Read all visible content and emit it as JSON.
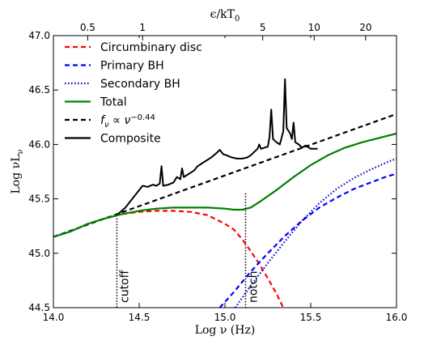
{
  "chart_data": {
    "type": "line",
    "xlabel": "Log ν (Hz)",
    "ylabel": "Log νL",
    "ylabel_sub": "ν",
    "top_xlabel": "ϵ/kT",
    "top_xlabel_sub": "0",
    "xlim": [
      14.0,
      16.0
    ],
    "ylim": [
      44.5,
      47.0
    ],
    "xticks": [
      14.0,
      14.5,
      15.0,
      15.5,
      16.0
    ],
    "xtick_labels": [
      "14.0",
      "14.5",
      "15.0",
      "15.5",
      "16.0"
    ],
    "yticks": [
      44.5,
      45.0,
      45.5,
      46.0,
      46.5,
      47.0
    ],
    "ytick_labels": [
      "44.5",
      "45.0",
      "45.5",
      "46.0",
      "46.5",
      "47.0"
    ],
    "top_ticks": [
      {
        "label": "0.5",
        "x": 14.2
      },
      {
        "label": "1",
        "x": 14.52
      },
      {
        "label": "5",
        "x": 15.22
      },
      {
        "label": "10",
        "x": 15.52
      },
      {
        "label": "20",
        "x": 15.82
      }
    ],
    "legend_position": "top-left",
    "grid": false,
    "series": [
      {
        "name": "Circumbinary disc",
        "color": "#ff0000",
        "style": "dashed",
        "points": [
          [
            14.0,
            45.15
          ],
          [
            14.1,
            45.2
          ],
          [
            14.2,
            45.27
          ],
          [
            14.3,
            45.32
          ],
          [
            14.4,
            45.36
          ],
          [
            14.5,
            45.38
          ],
          [
            14.6,
            45.39
          ],
          [
            14.7,
            45.39
          ],
          [
            14.8,
            45.38
          ],
          [
            14.9,
            45.35
          ],
          [
            15.0,
            45.27
          ],
          [
            15.05,
            45.22
          ],
          [
            15.1,
            45.13
          ],
          [
            15.15,
            45.02
          ],
          [
            15.2,
            44.9
          ],
          [
            15.25,
            44.77
          ],
          [
            15.3,
            44.63
          ],
          [
            15.34,
            44.5
          ]
        ]
      },
      {
        "name": "Primary BH",
        "color": "#0000ff",
        "style": "dashed",
        "points": [
          [
            14.97,
            44.5
          ],
          [
            15.05,
            44.64
          ],
          [
            15.15,
            44.83
          ],
          [
            15.25,
            45.0
          ],
          [
            15.35,
            45.16
          ],
          [
            15.45,
            45.3
          ],
          [
            15.55,
            45.42
          ],
          [
            15.65,
            45.51
          ],
          [
            15.75,
            45.59
          ],
          [
            15.85,
            45.65
          ],
          [
            15.95,
            45.71
          ],
          [
            16.0,
            45.73
          ]
        ]
      },
      {
        "name": "Secondary BH",
        "color": "#0000cc",
        "style": "dotted",
        "points": [
          [
            15.06,
            44.5
          ],
          [
            15.15,
            44.7
          ],
          [
            15.25,
            44.91
          ],
          [
            15.35,
            45.11
          ],
          [
            15.45,
            45.3
          ],
          [
            15.55,
            45.46
          ],
          [
            15.65,
            45.59
          ],
          [
            15.75,
            45.69
          ],
          [
            15.85,
            45.77
          ],
          [
            15.95,
            45.84
          ],
          [
            16.0,
            45.87
          ]
        ]
      },
      {
        "name": "Total",
        "color": "#007f00",
        "style": "solid",
        "points": [
          [
            14.0,
            45.15
          ],
          [
            14.1,
            45.2
          ],
          [
            14.2,
            45.27
          ],
          [
            14.3,
            45.32
          ],
          [
            14.4,
            45.36
          ],
          [
            14.5,
            45.39
          ],
          [
            14.6,
            45.41
          ],
          [
            14.7,
            45.42
          ],
          [
            14.8,
            45.42
          ],
          [
            14.9,
            45.42
          ],
          [
            15.0,
            45.41
          ],
          [
            15.05,
            45.4
          ],
          [
            15.1,
            45.4
          ],
          [
            15.15,
            45.42
          ],
          [
            15.2,
            45.47
          ],
          [
            15.3,
            45.58
          ],
          [
            15.4,
            45.7
          ],
          [
            15.5,
            45.81
          ],
          [
            15.6,
            45.9
          ],
          [
            15.7,
            45.97
          ],
          [
            15.8,
            46.02
          ],
          [
            15.9,
            46.06
          ],
          [
            16.0,
            46.1
          ]
        ]
      },
      {
        "name": "f_ν ∝ ν^−0.44",
        "color": "#000000",
        "style": "dashed",
        "points": [
          [
            14.0,
            45.15
          ],
          [
            16.0,
            46.28
          ]
        ]
      },
      {
        "name": "Composite",
        "color": "#000000",
        "style": "solid",
        "points": [
          [
            14.33,
            45.33
          ],
          [
            14.37,
            45.35
          ],
          [
            14.42,
            45.42
          ],
          [
            14.47,
            45.52
          ],
          [
            14.5,
            45.58
          ],
          [
            14.52,
            45.62
          ],
          [
            14.55,
            45.61
          ],
          [
            14.58,
            45.63
          ],
          [
            14.6,
            45.62
          ],
          [
            14.62,
            45.64
          ],
          [
            14.63,
            45.8
          ],
          [
            14.64,
            45.62
          ],
          [
            14.67,
            45.63
          ],
          [
            14.7,
            45.65
          ],
          [
            14.72,
            45.7
          ],
          [
            14.74,
            45.68
          ],
          [
            14.75,
            45.78
          ],
          [
            14.76,
            45.7
          ],
          [
            14.78,
            45.72
          ],
          [
            14.8,
            45.74
          ],
          [
            14.82,
            45.76
          ],
          [
            14.84,
            45.8
          ],
          [
            14.86,
            45.82
          ],
          [
            14.88,
            45.84
          ],
          [
            14.9,
            45.86
          ],
          [
            14.92,
            45.88
          ],
          [
            14.95,
            45.92
          ],
          [
            14.97,
            45.95
          ],
          [
            14.99,
            45.91
          ],
          [
            15.01,
            45.9
          ],
          [
            15.04,
            45.88
          ],
          [
            15.07,
            45.87
          ],
          [
            15.1,
            45.87
          ],
          [
            15.13,
            45.88
          ],
          [
            15.15,
            45.9
          ],
          [
            15.17,
            45.93
          ],
          [
            15.19,
            45.96
          ],
          [
            15.2,
            46.0
          ],
          [
            15.21,
            45.96
          ],
          [
            15.23,
            45.97
          ],
          [
            15.25,
            45.98
          ],
          [
            15.26,
            46.07
          ],
          [
            15.27,
            46.32
          ],
          [
            15.28,
            46.05
          ],
          [
            15.3,
            46.02
          ],
          [
            15.32,
            46.0
          ],
          [
            15.34,
            46.12
          ],
          [
            15.35,
            46.6
          ],
          [
            15.36,
            46.15
          ],
          [
            15.38,
            46.1
          ],
          [
            15.39,
            46.05
          ],
          [
            15.4,
            46.2
          ],
          [
            15.41,
            46.02
          ],
          [
            15.43,
            46.0
          ],
          [
            15.45,
            45.97
          ],
          [
            15.47,
            45.99
          ],
          [
            15.49,
            45.97
          ],
          [
            15.5,
            45.96
          ],
          [
            15.52,
            45.96
          ],
          [
            15.54,
            45.96
          ]
        ]
      }
    ],
    "annotations": [
      {
        "label": "cutoff",
        "x": 14.37,
        "y_top": 45.32
      },
      {
        "label": "notch",
        "x": 15.12,
        "y_top": 45.55
      }
    ]
  }
}
